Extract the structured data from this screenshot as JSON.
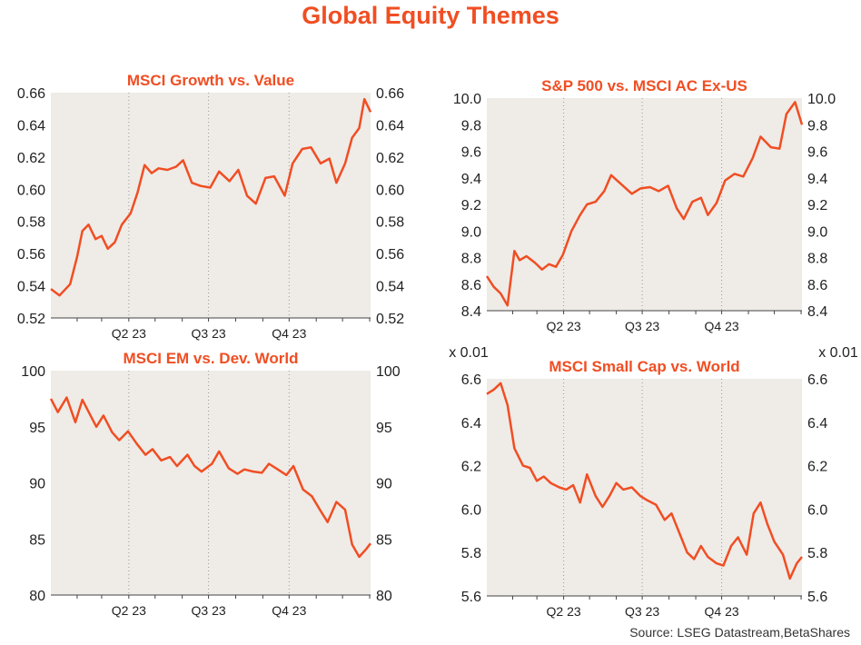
{
  "page": {
    "title": "Global Equity Themes",
    "source": "Source: LSEG Datastream,BetaShares"
  },
  "colors": {
    "line": "#f04e23",
    "plot_bg": "#efebe7",
    "title": "#f04e23",
    "grid": "#999999"
  },
  "chart_data": [
    {
      "type": "line",
      "title": "MSCI Growth vs. Value",
      "xlabel": "",
      "ylabel": "",
      "ylim": [
        0.52,
        0.66
      ],
      "yticks": [
        "0.52",
        "0.54",
        "0.56",
        "0.58",
        "0.60",
        "0.62",
        "0.64",
        "0.66"
      ],
      "xticks": [
        "Q2 23",
        "Q3 23",
        "Q4 23"
      ],
      "xlim": [
        "2023-01-02",
        "2024-01-02"
      ],
      "grid": true,
      "scale_note": "",
      "series": [
        {
          "x": [
            "2023-01-02",
            "2023-01-12",
            "2023-01-24",
            "2023-02-01",
            "2023-02-07",
            "2023-02-14",
            "2023-02-22",
            "2023-03-01",
            "2023-03-08",
            "2023-03-16",
            "2023-03-24",
            "2023-04-03",
            "2023-04-11",
            "2023-04-19",
            "2023-04-27",
            "2023-05-05",
            "2023-05-15",
            "2023-05-25",
            "2023-06-02",
            "2023-06-12",
            "2023-06-22",
            "2023-07-03",
            "2023-07-13",
            "2023-07-25",
            "2023-08-04",
            "2023-08-14",
            "2023-08-24",
            "2023-09-04",
            "2023-09-14",
            "2023-09-26",
            "2023-10-05",
            "2023-10-16",
            "2023-10-26",
            "2023-11-06",
            "2023-11-16",
            "2023-11-24",
            "2023-12-04",
            "2023-12-12",
            "2023-12-20",
            "2023-12-26",
            "2024-01-02"
          ],
          "y": [
            0.538,
            0.534,
            0.541,
            0.558,
            0.574,
            0.578,
            0.569,
            0.571,
            0.563,
            0.567,
            0.578,
            0.585,
            0.598,
            0.615,
            0.61,
            0.613,
            0.612,
            0.614,
            0.618,
            0.604,
            0.602,
            0.601,
            0.611,
            0.605,
            0.612,
            0.596,
            0.591,
            0.607,
            0.608,
            0.596,
            0.616,
            0.625,
            0.626,
            0.616,
            0.619,
            0.604,
            0.616,
            0.632,
            0.638,
            0.656,
            0.648
          ]
        }
      ]
    },
    {
      "type": "line",
      "title": "S&P 500 vs. MSCI AC Ex-US",
      "xlabel": "",
      "ylabel": "",
      "ylim": [
        8.4,
        10.0
      ],
      "yticks": [
        "8.4",
        "8.6",
        "8.8",
        "9.0",
        "9.2",
        "9.4",
        "9.6",
        "9.8",
        "10.0"
      ],
      "xticks": [
        "Q2 23",
        "Q3 23",
        "Q4 23"
      ],
      "xlim": [
        "2023-01-02",
        "2024-01-02"
      ],
      "grid": true,
      "scale_note": "",
      "series": [
        {
          "x": [
            "2023-01-02",
            "2023-01-10",
            "2023-01-18",
            "2023-01-26",
            "2023-02-03",
            "2023-02-09",
            "2023-02-17",
            "2023-02-27",
            "2023-03-07",
            "2023-03-15",
            "2023-03-23",
            "2023-03-31",
            "2023-04-10",
            "2023-04-20",
            "2023-04-28",
            "2023-05-08",
            "2023-05-18",
            "2023-05-26",
            "2023-06-07",
            "2023-06-19",
            "2023-06-29",
            "2023-07-10",
            "2023-07-20",
            "2023-07-31",
            "2023-08-10",
            "2023-08-18",
            "2023-08-28",
            "2023-09-07",
            "2023-09-15",
            "2023-09-25",
            "2023-10-05",
            "2023-10-16",
            "2023-10-26",
            "2023-11-06",
            "2023-11-15",
            "2023-11-27",
            "2023-12-07",
            "2023-12-15",
            "2023-12-25",
            "2024-01-02"
          ],
          "y": [
            8.66,
            8.58,
            8.53,
            8.44,
            8.85,
            8.78,
            8.81,
            8.76,
            8.71,
            8.75,
            8.73,
            8.82,
            9.0,
            9.12,
            9.2,
            9.22,
            9.3,
            9.42,
            9.35,
            9.28,
            9.32,
            9.33,
            9.3,
            9.34,
            9.17,
            9.09,
            9.22,
            9.25,
            9.12,
            9.21,
            9.38,
            9.43,
            9.41,
            9.55,
            9.71,
            9.63,
            9.62,
            9.88,
            9.97,
            9.8
          ]
        }
      ]
    },
    {
      "type": "line",
      "title": "MSCI EM vs. Dev. World",
      "xlabel": "",
      "ylabel": "",
      "ylim": [
        80,
        100
      ],
      "yticks": [
        "80",
        "85",
        "90",
        "95",
        "100"
      ],
      "xticks": [
        "Q2 23",
        "Q3 23",
        "Q4 23"
      ],
      "xlim": [
        "2023-01-02",
        "2024-01-02"
      ],
      "grid": true,
      "scale_note": "",
      "series": [
        {
          "x": [
            "2023-01-02",
            "2023-01-10",
            "2023-01-20",
            "2023-01-30",
            "2023-02-07",
            "2023-02-15",
            "2023-02-23",
            "2023-03-03",
            "2023-03-13",
            "2023-03-21",
            "2023-03-31",
            "2023-04-10",
            "2023-04-20",
            "2023-04-28",
            "2023-05-08",
            "2023-05-18",
            "2023-05-26",
            "2023-06-07",
            "2023-06-15",
            "2023-06-23",
            "2023-07-05",
            "2023-07-13",
            "2023-07-24",
            "2023-08-03",
            "2023-08-11",
            "2023-08-21",
            "2023-08-31",
            "2023-09-08",
            "2023-09-18",
            "2023-09-28",
            "2023-10-06",
            "2023-10-17",
            "2023-10-27",
            "2023-11-06",
            "2023-11-14",
            "2023-11-24",
            "2023-12-04",
            "2023-12-12",
            "2023-12-20",
            "2023-12-28",
            "2024-01-02"
          ],
          "y": [
            97.5,
            96.3,
            97.6,
            95.4,
            97.4,
            96.2,
            95.0,
            96.0,
            94.5,
            93.8,
            94.6,
            93.5,
            92.5,
            93.0,
            92.0,
            92.3,
            91.5,
            92.5,
            91.5,
            91.0,
            91.7,
            92.8,
            91.3,
            90.8,
            91.2,
            91.0,
            90.9,
            91.7,
            91.2,
            90.7,
            91.5,
            89.4,
            88.8,
            87.5,
            86.5,
            88.3,
            87.6,
            84.5,
            83.4,
            84.1,
            84.6
          ]
        }
      ]
    },
    {
      "type": "line",
      "title": "MSCI Small Cap vs. World",
      "xlabel": "",
      "ylabel": "",
      "ylim": [
        5.6,
        6.6
      ],
      "yticks": [
        "5.6",
        "5.8",
        "6.0",
        "6.2",
        "6.4",
        "6.6"
      ],
      "xticks": [
        "Q2 23",
        "Q3 23",
        "Q4 23"
      ],
      "xlim": [
        "2023-01-02",
        "2024-01-02"
      ],
      "grid": true,
      "scale_note": "x 0.01",
      "series": [
        {
          "x": [
            "2023-01-02",
            "2023-01-10",
            "2023-01-18",
            "2023-01-26",
            "2023-02-03",
            "2023-02-13",
            "2023-02-21",
            "2023-03-01",
            "2023-03-09",
            "2023-03-17",
            "2023-03-27",
            "2023-04-04",
            "2023-04-12",
            "2023-04-20",
            "2023-04-28",
            "2023-05-08",
            "2023-05-16",
            "2023-05-24",
            "2023-06-01",
            "2023-06-09",
            "2023-06-19",
            "2023-06-29",
            "2023-07-07",
            "2023-07-17",
            "2023-07-27",
            "2023-08-04",
            "2023-08-14",
            "2023-08-22",
            "2023-08-30",
            "2023-09-07",
            "2023-09-15",
            "2023-09-25",
            "2023-10-03",
            "2023-10-12",
            "2023-10-20",
            "2023-10-30",
            "2023-11-07",
            "2023-11-15",
            "2023-11-23",
            "2023-12-01",
            "2023-12-11",
            "2023-12-19",
            "2023-12-27",
            "2024-01-02"
          ],
          "y": [
            6.53,
            6.55,
            6.58,
            6.48,
            6.28,
            6.2,
            6.19,
            6.13,
            6.15,
            6.12,
            6.1,
            6.09,
            6.11,
            6.03,
            6.16,
            6.06,
            6.01,
            6.06,
            6.12,
            6.09,
            6.1,
            6.06,
            6.04,
            6.02,
            5.95,
            5.98,
            5.88,
            5.8,
            5.77,
            5.83,
            5.78,
            5.75,
            5.74,
            5.83,
            5.87,
            5.79,
            5.98,
            6.03,
            5.93,
            5.85,
            5.79,
            5.68,
            5.75,
            5.78
          ]
        }
      ]
    }
  ]
}
